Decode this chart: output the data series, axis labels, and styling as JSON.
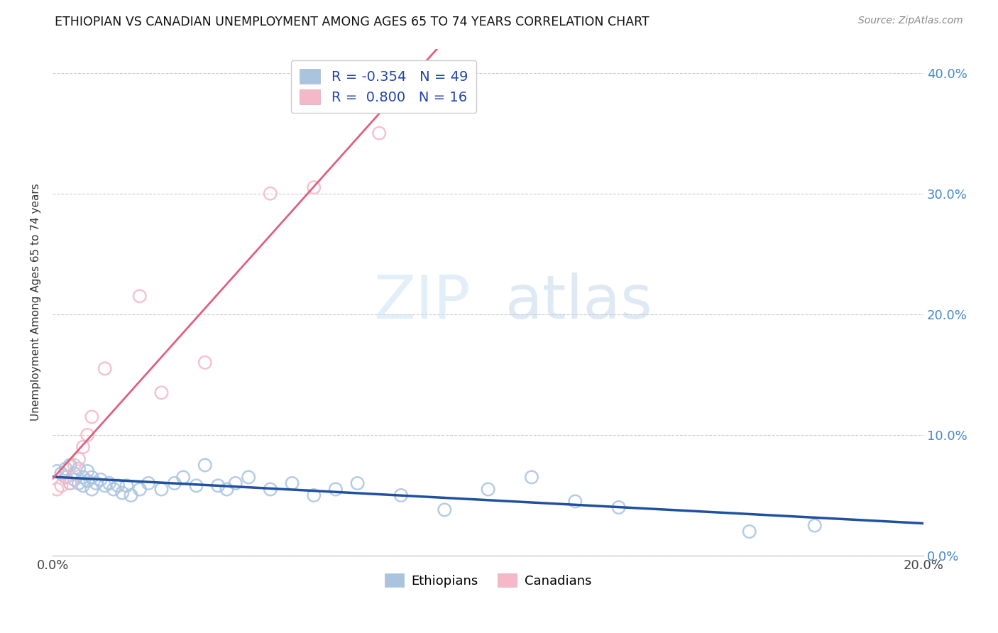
{
  "title": "ETHIOPIAN VS CANADIAN UNEMPLOYMENT AMONG AGES 65 TO 74 YEARS CORRELATION CHART",
  "source": "Source: ZipAtlas.com",
  "ylabel": "Unemployment Among Ages 65 to 74 years",
  "xlim": [
    0.0,
    0.2
  ],
  "ylim": [
    0.0,
    0.42
  ],
  "xticks": [
    0.0,
    0.04,
    0.08,
    0.12,
    0.16,
    0.2
  ],
  "xtick_labels": [
    "0.0%",
    "",
    "",
    "",
    "",
    "20.0%"
  ],
  "yticks": [
    0.0,
    0.1,
    0.2,
    0.3,
    0.4
  ],
  "ytick_labels_right": [
    "0.0%",
    "10.0%",
    "20.0%",
    "30.0%",
    "40.0%"
  ],
  "watermark_zip": "ZIP",
  "watermark_atlas": "atlas",
  "legend_ethiopians_R": "-0.354",
  "legend_ethiopians_N": "49",
  "legend_canadians_R": "0.800",
  "legend_canadians_N": "16",
  "blue_face": "#aac4e0",
  "blue_edge": "#8aafd0",
  "pink_face": "#f4b8c8",
  "pink_edge": "#e8a0b0",
  "blue_line_color": "#2050a0",
  "pink_line_color": "#e06080",
  "ethiopians_x": [
    0.001,
    0.002,
    0.003,
    0.003,
    0.004,
    0.004,
    0.005,
    0.005,
    0.006,
    0.006,
    0.007,
    0.007,
    0.008,
    0.008,
    0.009,
    0.009,
    0.01,
    0.011,
    0.012,
    0.013,
    0.014,
    0.015,
    0.016,
    0.017,
    0.018,
    0.02,
    0.022,
    0.025,
    0.028,
    0.03,
    0.033,
    0.035,
    0.038,
    0.04,
    0.042,
    0.045,
    0.05,
    0.055,
    0.06,
    0.065,
    0.07,
    0.08,
    0.09,
    0.1,
    0.11,
    0.12,
    0.13,
    0.16,
    0.175
  ],
  "ethiopians_y": [
    0.07,
    0.068,
    0.072,
    0.065,
    0.06,
    0.075,
    0.068,
    0.063,
    0.072,
    0.06,
    0.065,
    0.058,
    0.07,
    0.062,
    0.065,
    0.055,
    0.06,
    0.063,
    0.058,
    0.06,
    0.055,
    0.058,
    0.052,
    0.058,
    0.05,
    0.055,
    0.06,
    0.055,
    0.06,
    0.065,
    0.058,
    0.075,
    0.058,
    0.055,
    0.06,
    0.065,
    0.055,
    0.06,
    0.05,
    0.055,
    0.06,
    0.05,
    0.038,
    0.055,
    0.065,
    0.045,
    0.04,
    0.02,
    0.025
  ],
  "canadians_x": [
    0.001,
    0.002,
    0.003,
    0.004,
    0.005,
    0.006,
    0.007,
    0.008,
    0.009,
    0.012,
    0.02,
    0.025,
    0.035,
    0.05,
    0.06,
    0.075
  ],
  "canadians_y": [
    0.055,
    0.058,
    0.065,
    0.06,
    0.075,
    0.08,
    0.09,
    0.1,
    0.115,
    0.155,
    0.215,
    0.135,
    0.16,
    0.3,
    0.305,
    0.35
  ]
}
